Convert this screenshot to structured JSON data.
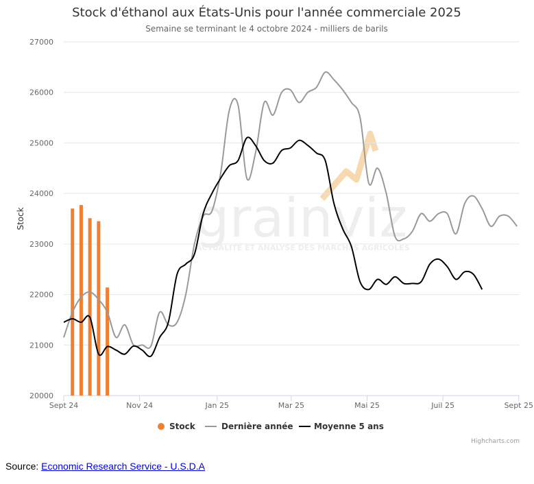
{
  "chart_data": {
    "type": "line",
    "title": "Stock d'éthanol aux États-Unis pour l'année commerciale 2025",
    "subtitle": "Semaine se terminant le 4 octobre 2024 - milliers de barils",
    "ylabel": "Stock",
    "xlabel": "",
    "ylim": [
      20000,
      27000
    ],
    "yticks": [
      20000,
      21000,
      22000,
      23000,
      24000,
      25000,
      26000,
      27000
    ],
    "xticks": [
      {
        "week": 0,
        "label": "Sept 24"
      },
      {
        "week": 8.7,
        "label": "Nov 24"
      },
      {
        "week": 17.6,
        "label": "Jan 25"
      },
      {
        "week": 26.1,
        "label": "Mar 25"
      },
      {
        "week": 34.8,
        "label": "Mai 25"
      },
      {
        "week": 43.5,
        "label": "Juil 25"
      },
      {
        "week": 52.2,
        "label": "Sept 25"
      }
    ],
    "grid": true,
    "legend_position": "bottom",
    "series": [
      {
        "name": "Stock",
        "type": "bar",
        "color": "#ee8033",
        "points": [
          [
            1,
            23700
          ],
          [
            2,
            23770
          ],
          [
            3,
            23510
          ],
          [
            4,
            23450
          ],
          [
            5,
            22140
          ]
        ]
      },
      {
        "name": "Dernière année",
        "type": "line",
        "color": "#999999",
        "points": [
          [
            0,
            21150
          ],
          [
            1,
            21650
          ],
          [
            2,
            21950
          ],
          [
            3,
            22050
          ],
          [
            4,
            21900
          ],
          [
            5,
            21650
          ],
          [
            6,
            21150
          ],
          [
            7,
            21400
          ],
          [
            8,
            21000
          ],
          [
            9,
            21000
          ],
          [
            10,
            20980
          ],
          [
            11,
            21650
          ],
          [
            12,
            21400
          ],
          [
            13,
            21450
          ],
          [
            14,
            22000
          ],
          [
            15,
            23000
          ],
          [
            16,
            23550
          ],
          [
            17,
            23650
          ],
          [
            18,
            24400
          ],
          [
            19,
            25650
          ],
          [
            20,
            25750
          ],
          [
            21,
            24300
          ],
          [
            22,
            24800
          ],
          [
            23,
            25800
          ],
          [
            24,
            25550
          ],
          [
            25,
            26000
          ],
          [
            26,
            26050
          ],
          [
            27,
            25800
          ],
          [
            28,
            26000
          ],
          [
            29,
            26100
          ],
          [
            30,
            26400
          ],
          [
            31,
            26250
          ],
          [
            32,
            26050
          ],
          [
            33,
            25800
          ],
          [
            34,
            25500
          ],
          [
            35,
            24200
          ],
          [
            36,
            24500
          ],
          [
            37,
            24000
          ],
          [
            38,
            23150
          ],
          [
            39,
            23100
          ],
          [
            40,
            23250
          ],
          [
            41,
            23600
          ],
          [
            42,
            23450
          ],
          [
            43,
            23600
          ],
          [
            44,
            23600
          ],
          [
            45,
            23200
          ],
          [
            46,
            23800
          ],
          [
            47,
            23950
          ],
          [
            48,
            23700
          ],
          [
            49,
            23350
          ],
          [
            50,
            23550
          ],
          [
            51,
            23550
          ],
          [
            52,
            23350
          ]
        ]
      },
      {
        "name": "Moyenne 5 ans",
        "type": "line",
        "color": "#000000",
        "points": [
          [
            0,
            21450
          ],
          [
            1,
            21520
          ],
          [
            2,
            21450
          ],
          [
            3,
            21550
          ],
          [
            4,
            20820
          ],
          [
            5,
            20970
          ],
          [
            6,
            20900
          ],
          [
            7,
            20820
          ],
          [
            8,
            20980
          ],
          [
            9,
            20900
          ],
          [
            10,
            20780
          ],
          [
            11,
            21150
          ],
          [
            12,
            21450
          ],
          [
            13,
            22400
          ],
          [
            14,
            22600
          ],
          [
            15,
            22800
          ],
          [
            16,
            23600
          ],
          [
            17,
            24000
          ],
          [
            18,
            24300
          ],
          [
            19,
            24550
          ],
          [
            20,
            24650
          ],
          [
            21,
            25100
          ],
          [
            22,
            24950
          ],
          [
            23,
            24650
          ],
          [
            24,
            24600
          ],
          [
            25,
            24850
          ],
          [
            26,
            24900
          ],
          [
            27,
            25050
          ],
          [
            28,
            24950
          ],
          [
            29,
            24800
          ],
          [
            30,
            24650
          ],
          [
            31,
            23800
          ],
          [
            32,
            23300
          ],
          [
            33,
            22950
          ],
          [
            34,
            22250
          ],
          [
            35,
            22100
          ],
          [
            36,
            22300
          ],
          [
            37,
            22200
          ],
          [
            38,
            22350
          ],
          [
            39,
            22220
          ],
          [
            40,
            22220
          ],
          [
            41,
            22250
          ],
          [
            42,
            22600
          ],
          [
            43,
            22700
          ],
          [
            44,
            22550
          ],
          [
            45,
            22300
          ],
          [
            46,
            22450
          ],
          [
            47,
            22400
          ],
          [
            48,
            22100
          ]
        ]
      }
    ]
  },
  "watermark": {
    "brand": "grainviz",
    "tagline": "ACTUALITÉ ET ANALYSE DES MARCHÉS AGRICOLES"
  },
  "credits": "Highcharts.com",
  "source": {
    "label": "Source: ",
    "link_text": "Economic Research Service - U.S.D.A"
  },
  "colors": {
    "stock": "#ee8033",
    "last_year": "#999999",
    "five_year_avg": "#000000",
    "watermark_accent": "#f7d9b0",
    "link": "#0000ee"
  }
}
